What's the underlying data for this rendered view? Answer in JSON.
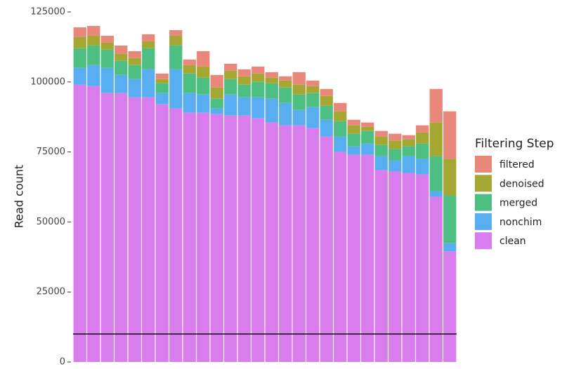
{
  "chart_data": {
    "type": "stacked-bar",
    "y_label": "Read count",
    "legend_title": "Filtering Step",
    "categories": [
      null,
      null,
      null,
      null,
      null,
      null,
      null,
      null,
      null,
      null,
      null,
      null,
      null,
      null,
      null,
      null,
      null,
      null,
      null,
      null,
      null,
      null,
      null,
      null,
      null,
      null,
      null,
      null
    ],
    "ylim": [
      0,
      125000
    ],
    "yticks": [
      0,
      25000,
      50000,
      75000,
      100000,
      125000
    ],
    "hline": 10000,
    "legend_position": "right",
    "series": [
      {
        "name": "clean",
        "color": "#d97ced",
        "values": [
          99000,
          98500,
          96000,
          96000,
          94500,
          94500,
          92000,
          90500,
          89000,
          89000,
          88500,
          88000,
          88000,
          87000,
          85500,
          84500,
          84500,
          83500,
          80500,
          75000,
          74000,
          74000,
          68500,
          68000,
          67500,
          67000,
          59000,
          39500
        ]
      },
      {
        "name": "nonchim",
        "color": "#58aef0",
        "values": [
          6000,
          7500,
          9000,
          6500,
          6500,
          10000,
          4000,
          14000,
          7000,
          6500,
          2000,
          7500,
          6500,
          7500,
          8500,
          8000,
          5500,
          7500,
          6000,
          5500,
          3000,
          4000,
          5000,
          4000,
          6000,
          5500,
          2000,
          3000
        ]
      },
      {
        "name": "merged",
        "color": "#4dbf82",
        "values": [
          7000,
          7000,
          6500,
          5000,
          5000,
          7500,
          3500,
          8500,
          7000,
          6000,
          3500,
          5500,
          4500,
          5500,
          5500,
          5500,
          5500,
          5000,
          5000,
          5500,
          4500,
          4500,
          4000,
          4000,
          3500,
          5500,
          12500,
          17000
        ]
      },
      {
        "name": "denoised",
        "color": "#a4a832",
        "values": [
          4000,
          3500,
          2500,
          2500,
          2500,
          2500,
          1500,
          3500,
          3000,
          4000,
          4000,
          3000,
          3000,
          3000,
          2000,
          2500,
          3500,
          2500,
          3500,
          3500,
          3000,
          1500,
          3000,
          3000,
          2500,
          4000,
          12000,
          13000
        ]
      },
      {
        "name": "filtered",
        "color": "#e8877a",
        "values": [
          3500,
          3500,
          2500,
          3000,
          2500,
          2500,
          2000,
          2000,
          2000,
          5500,
          4500,
          2500,
          2500,
          2500,
          2000,
          1500,
          4500,
          2000,
          2500,
          3000,
          2000,
          1500,
          2000,
          2500,
          1500,
          2500,
          12000,
          17000
        ]
      }
    ]
  }
}
